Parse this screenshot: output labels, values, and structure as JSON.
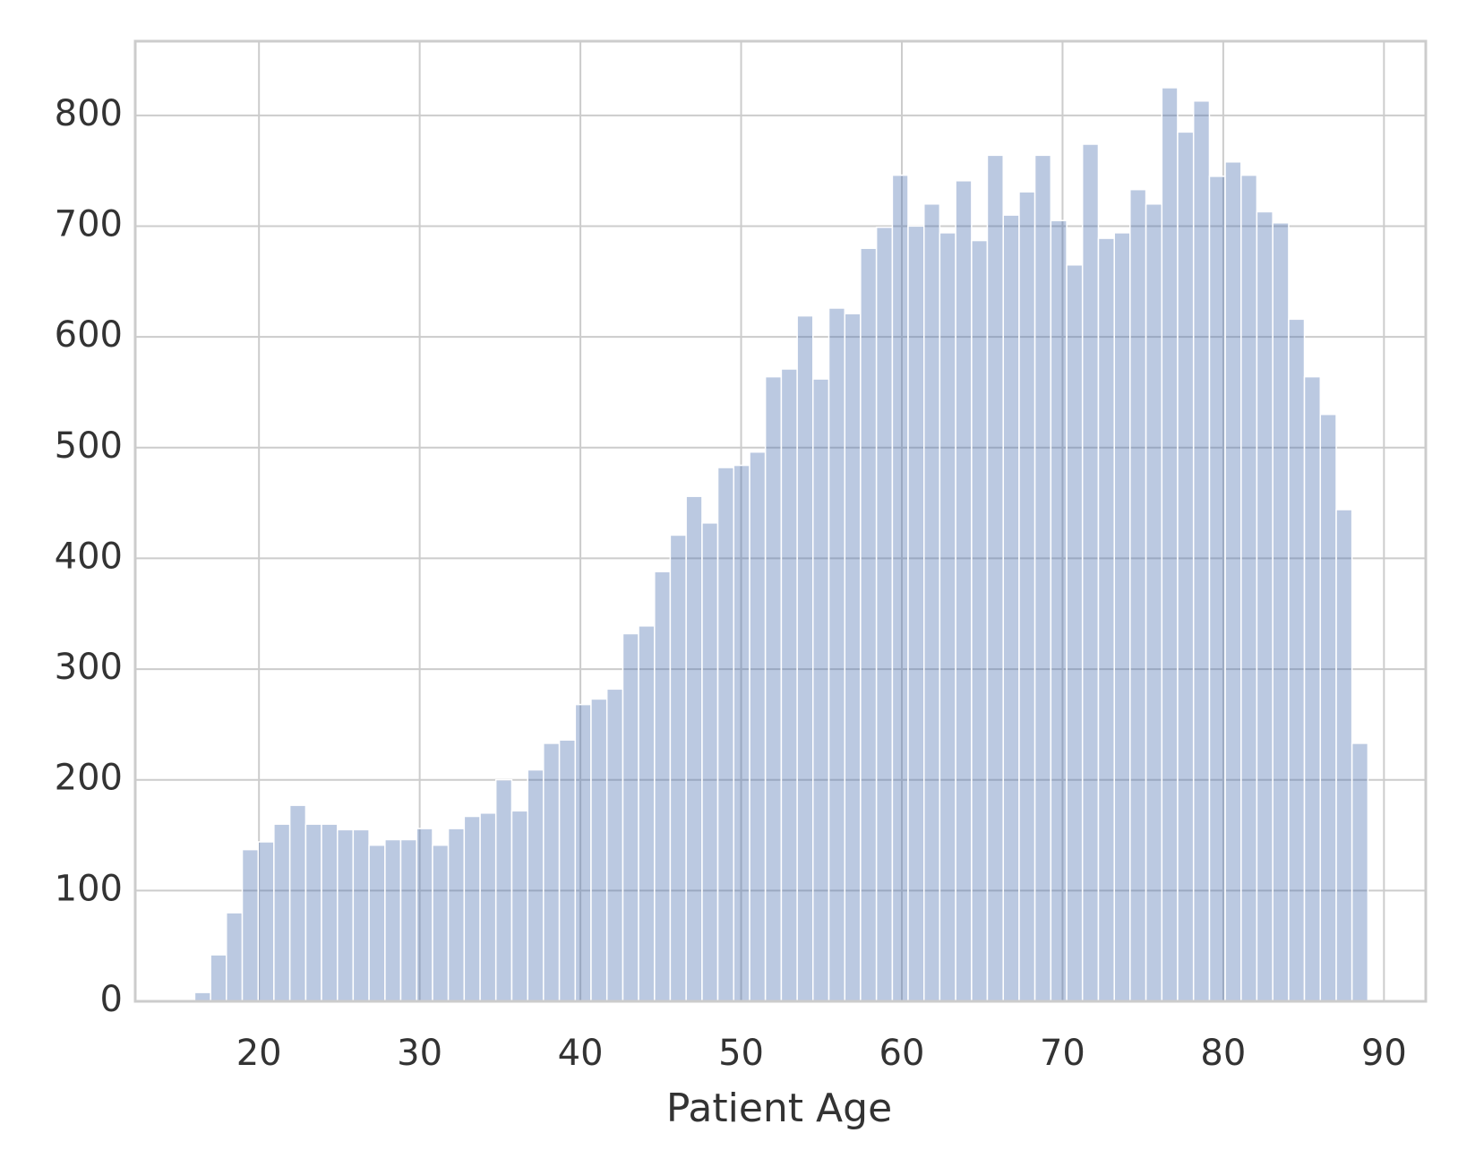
{
  "chart_data": {
    "type": "histogram",
    "x_label": "Patient Age",
    "bins": [
      16.0,
      16.99,
      17.97,
      18.96,
      19.95,
      20.93,
      21.92,
      22.91,
      23.89,
      24.88,
      25.86,
      26.85,
      27.84,
      28.82,
      29.81,
      30.8,
      31.78,
      32.77,
      33.76,
      34.74,
      35.73,
      36.72,
      37.7,
      38.69,
      39.68,
      40.66,
      41.65,
      42.64,
      43.62,
      44.61,
      45.59,
      46.58,
      47.57,
      48.55,
      49.54,
      50.53,
      51.51,
      52.5,
      53.49,
      54.47,
      55.46,
      56.45,
      57.43,
      58.42,
      59.41,
      60.39,
      61.38,
      62.36,
      63.35,
      64.34,
      65.32,
      66.31,
      67.3,
      68.28,
      69.27,
      70.26,
      71.24,
      72.23,
      73.22,
      74.2,
      75.19,
      76.18,
      77.16,
      78.15,
      79.14,
      80.12,
      81.11,
      82.09,
      83.08,
      84.07,
      85.05,
      86.04,
      87.03,
      88.01,
      89.0
    ],
    "values": [
      8,
      42,
      80,
      137,
      144,
      160,
      177,
      160,
      160,
      155,
      155,
      141,
      146,
      146,
      156,
      141,
      156,
      167,
      170,
      200,
      172,
      209,
      233,
      236,
      268,
      273,
      282,
      332,
      339,
      388,
      421,
      456,
      432,
      482,
      484,
      496,
      564,
      571,
      619,
      562,
      626,
      621,
      680,
      699,
      746,
      700,
      720,
      694,
      741,
      687,
      764,
      710,
      731,
      764,
      705,
      665,
      774,
      689,
      694,
      733,
      720,
      825,
      785,
      813,
      745,
      758,
      746,
      713,
      703,
      616,
      564,
      530,
      444,
      233
    ],
    "color": "#4c72b0",
    "xlim": [
      12.3,
      92.6
    ],
    "ylim": [
      0,
      867
    ],
    "xticks": [
      20,
      30,
      40,
      50,
      60,
      70,
      80,
      90
    ],
    "yticks": [
      0,
      100,
      200,
      300,
      400,
      500,
      600,
      700,
      800
    ],
    "grid": true
  }
}
